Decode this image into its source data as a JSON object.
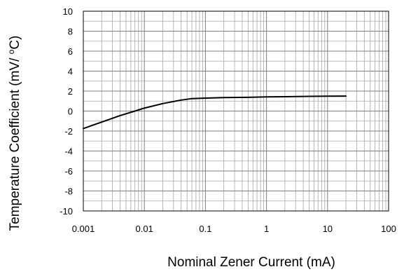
{
  "chart_data": {
    "type": "line",
    "xlabel": "Nominal Zener Current (mA)",
    "ylabel_parts": {
      "before": "Temperature Coefficient (mV/ ",
      "superscript": "o",
      "after": "C)"
    },
    "x_scale": "log",
    "xlim": [
      0.001,
      100
    ],
    "ylim": [
      -10,
      10
    ],
    "x_ticks": [
      "0.001",
      "0.01",
      "0.1",
      "1",
      "10",
      "100"
    ],
    "y_ticks": [
      "10",
      "8",
      "6",
      "4",
      "2",
      "0",
      "-2",
      "-4",
      "-6",
      "-8",
      "-10"
    ],
    "grid": true,
    "series": [
      {
        "color": "#000000",
        "x": [
          0.001,
          0.002,
          0.004,
          0.007,
          0.01,
          0.02,
          0.04,
          0.06,
          0.1,
          0.2,
          0.5,
          1,
          2,
          5,
          10,
          20
        ],
        "y": [
          -1.75,
          -1.1,
          -0.45,
          0.0,
          0.3,
          0.75,
          1.1,
          1.25,
          1.3,
          1.35,
          1.38,
          1.42,
          1.44,
          1.47,
          1.49,
          1.5
        ]
      }
    ]
  }
}
